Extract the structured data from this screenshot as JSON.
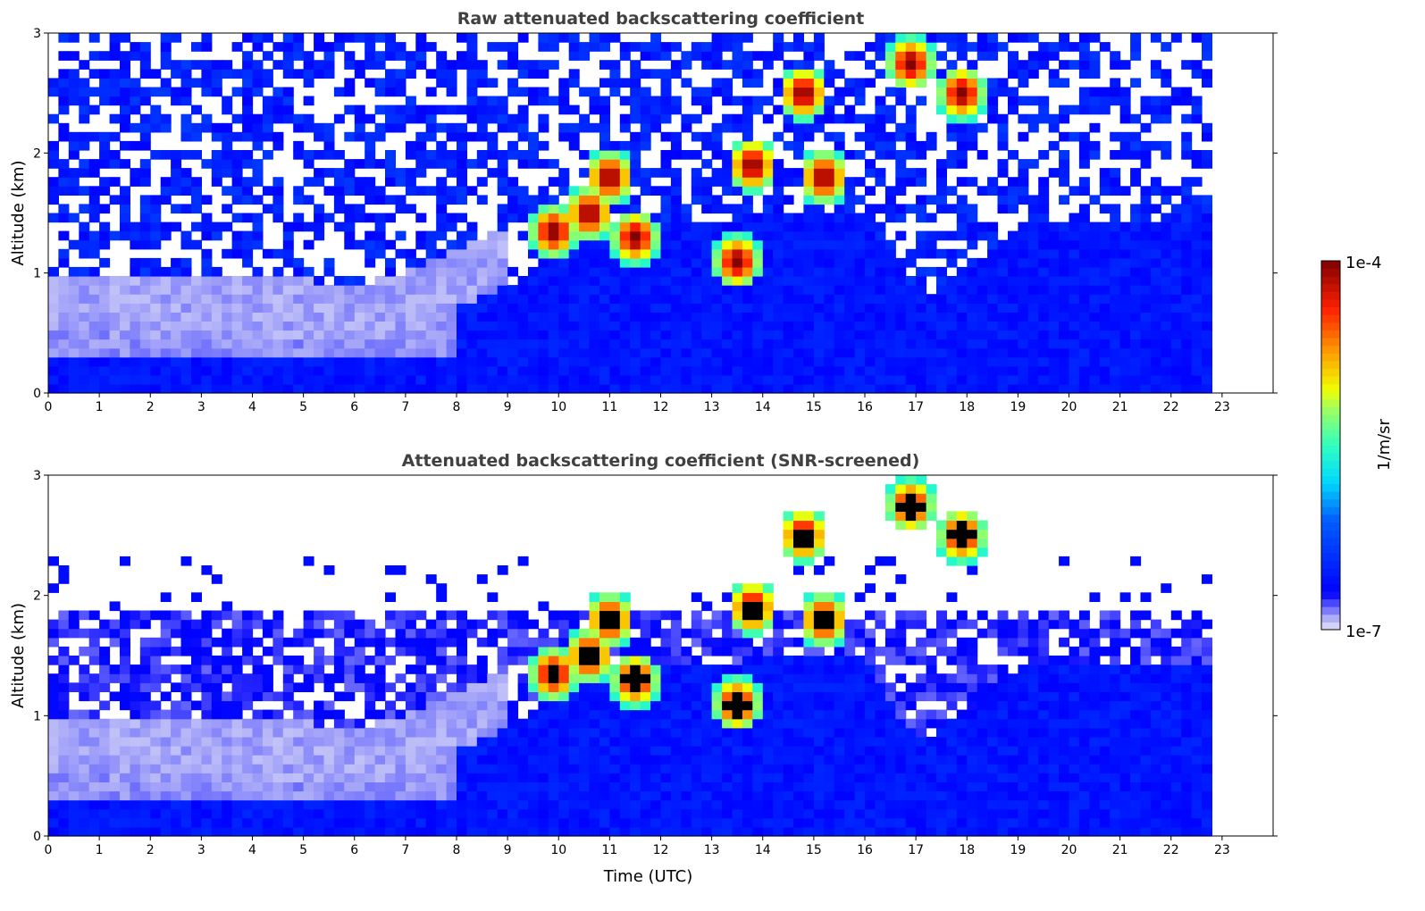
{
  "chart_data": [
    {
      "type": "heatmap",
      "title": "Raw attenuated backscattering coefficient",
      "xlabel": "",
      "ylabel": "Altitude (km)",
      "xlim": [
        0,
        24
      ],
      "ylim": [
        0,
        3
      ],
      "xticks": [
        "0",
        "1",
        "2",
        "3",
        "4",
        "5",
        "6",
        "7",
        "8",
        "9",
        "10",
        "11",
        "12",
        "13",
        "14",
        "15",
        "16",
        "17",
        "18",
        "19",
        "20",
        "21",
        "22",
        "23"
      ],
      "yticks": [
        "0",
        "1",
        "2",
        "3"
      ],
      "screened": false
    },
    {
      "type": "heatmap",
      "title": "Attenuated backscattering coefficient (SNR-screened)",
      "xlabel": "Time (UTC)",
      "ylabel": "Altitude (km)",
      "xlim": [
        0,
        24
      ],
      "ylim": [
        0,
        3
      ],
      "xticks": [
        "0",
        "1",
        "2",
        "3",
        "4",
        "5",
        "6",
        "7",
        "8",
        "9",
        "10",
        "11",
        "12",
        "13",
        "14",
        "15",
        "16",
        "17",
        "18",
        "19",
        "20",
        "21",
        "22",
        "23"
      ],
      "yticks": [
        "0",
        "1",
        "2",
        "3"
      ],
      "screened": true
    }
  ],
  "data_end_hour": 22.8,
  "boundary_layer_top_km": [
    0.5,
    0.5,
    0.45,
    0.45,
    0.45,
    0.45,
    0.4,
    0.5,
    0.7,
    0.9,
    1.2,
    1.3,
    1.4,
    1.4,
    1.5,
    1.5,
    1.5,
    0.8,
    1.0,
    1.4,
    1.4,
    1.4,
    1.45,
    1.4
  ],
  "clouds": [
    {
      "t": 9.9,
      "z": 1.35
    },
    {
      "t": 10.6,
      "z": 1.5
    },
    {
      "t": 11,
      "z": 1.8
    },
    {
      "t": 11.5,
      "z": 1.3
    },
    {
      "t": 13.5,
      "z": 1.1
    },
    {
      "t": 13.8,
      "z": 1.9
    },
    {
      "t": 14.8,
      "z": 2.5
    },
    {
      "t": 15.2,
      "z": 1.8
    },
    {
      "t": 16.9,
      "z": 2.75
    },
    {
      "t": 17.9,
      "z": 2.5
    }
  ],
  "colorbar": {
    "label": "1/m/sr",
    "min_label": "1e-7",
    "max_label": "1e-4",
    "colorscale": [
      [
        0,
        "#e6e6fa"
      ],
      [
        0.03,
        "#b0b0f8"
      ],
      [
        0.07,
        "#5050ff"
      ],
      [
        0.1,
        "#0000ff"
      ],
      [
        0.3,
        "#0060ff"
      ],
      [
        0.4,
        "#00d8ff"
      ],
      [
        0.5,
        "#30ffc0"
      ],
      [
        0.6,
        "#a0ff60"
      ],
      [
        0.65,
        "#f0ff00"
      ],
      [
        0.75,
        "#ffa000"
      ],
      [
        0.87,
        "#ff2000"
      ],
      [
        1,
        "#800000"
      ]
    ]
  }
}
